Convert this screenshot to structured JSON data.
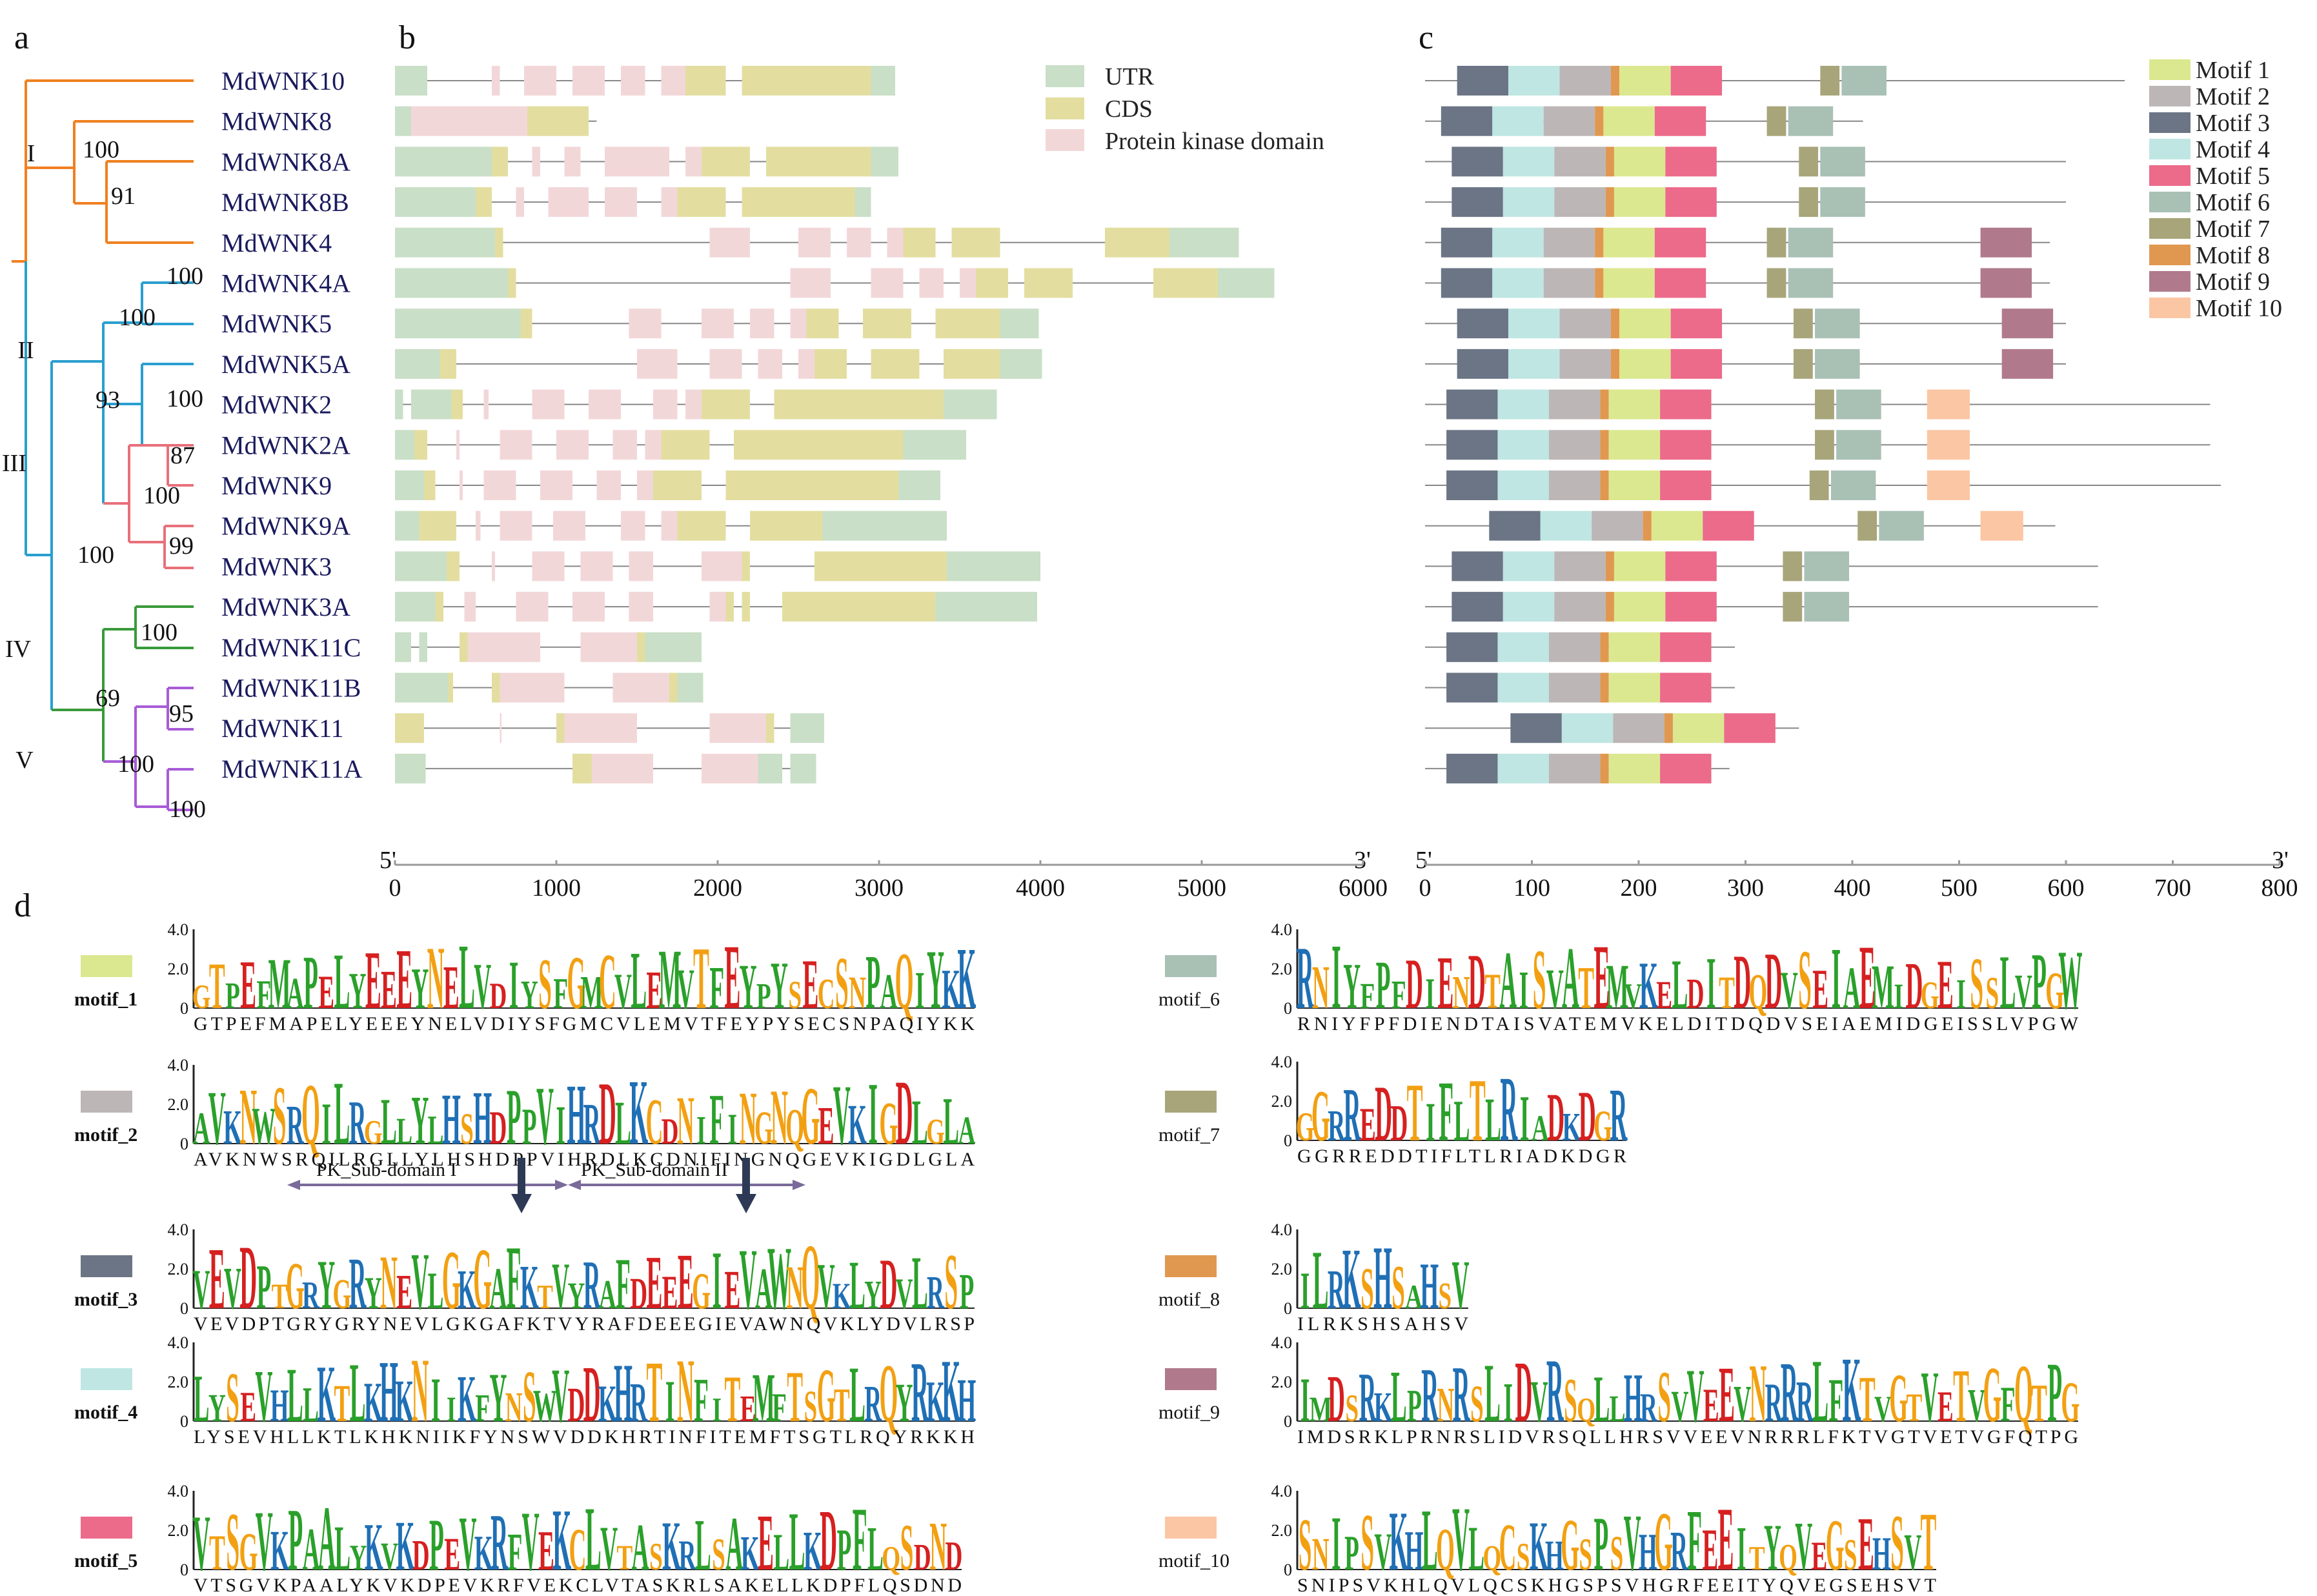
{
  "panels": {
    "a": "a",
    "b": "b",
    "c": "c",
    "d": "d"
  },
  "colors": {
    "utr": "#c9dfc7",
    "cds": "#e3dea0",
    "pk": "#f2d7d9",
    "line": "#888888",
    "groupI": "#f08020",
    "groupII": "#2a9fd0",
    "groupIII": "#e8707a",
    "groupIV": "#3a9a3a",
    "groupV": "#a85bd8",
    "logoA": "#2aa02a",
    "logoC": "#1f6fb5",
    "logoG": "#f2a012",
    "logoT": "#d62020"
  },
  "tree": {
    "groups": [
      "I",
      "II",
      "III",
      "IV",
      "V"
    ],
    "bootstrap": [
      "100",
      "91",
      "100",
      "100",
      "100",
      "93",
      "87",
      "100",
      "99",
      "100",
      "100",
      "69",
      "95",
      "100",
      "100"
    ]
  },
  "genes": [
    "MdWNK10",
    "MdWNK8",
    "MdWNK8A",
    "MdWNK8B",
    "MdWNK4",
    "MdWNK4A",
    "MdWNK5",
    "MdWNK5A",
    "MdWNK2",
    "MdWNK2A",
    "MdWNK9",
    "MdWNK9A",
    "MdWNK3",
    "MdWNK3A",
    "MdWNK11C",
    "MdWNK11B",
    "MdWNK11",
    "MdWNK11A"
  ],
  "gene_structure": {
    "legend": [
      "UTR",
      "CDS",
      "Protein kinase domain"
    ],
    "axis": {
      "start": "5'",
      "end": "3'",
      "ticks": [
        "0",
        "1000",
        "2000",
        "3000",
        "4000",
        "5000",
        "6000"
      ],
      "max": 6000
    },
    "lengths": [
      3100,
      1250,
      3120,
      2950,
      5230,
      5450,
      3990,
      4010,
      3730,
      3540,
      3380,
      3420,
      4000,
      3980,
      1900,
      1910,
      2660,
      2610
    ]
  },
  "motif_structure": {
    "axis": {
      "start": "5'",
      "end": "3'",
      "ticks": [
        "0",
        "100",
        "200",
        "300",
        "400",
        "500",
        "600",
        "700",
        "800"
      ],
      "max": 800
    },
    "protein_lengths": [
      655,
      410,
      600,
      600,
      585,
      585,
      600,
      600,
      735,
      735,
      745,
      590,
      630,
      630,
      290,
      290,
      350,
      285
    ],
    "legend": [
      "Motif 1",
      "Motif 2",
      "Motif 3",
      "Motif 4",
      "Motif 5",
      "Motif 6",
      "Motif 7",
      "Motif 8",
      "Motif 9",
      "Motif 10"
    ],
    "motif_colors": [
      "#dbe890",
      "#bdb6b6",
      "#6b7585",
      "#bfe6e2",
      "#ec6a8a",
      "#a9c0b5",
      "#a8a57a",
      "#e09850",
      "#b07a8c",
      "#fbc6a4"
    ]
  },
  "logos": {
    "ytick": [
      "4.0",
      "2.0",
      "0"
    ],
    "annotations": [
      "PK_Sub-domain I",
      "PK_Sub-domain II"
    ],
    "motifs": [
      {
        "name": "motif_1",
        "seq": "GTPEFMAPELYEEEYNELVDIYSFGMCVLEMVTFEYPYSECSNPAQIYKK"
      },
      {
        "name": "motif_2",
        "seq": "AVKNWSRQILRGLLYLHSHDPPVIHRDLKCDNIFINGNQGEVKIGDLGLA"
      },
      {
        "name": "motif_3",
        "seq": "VEVDPTGRYGRYNEVLGKGAFKTVYRAFDEEEGIEVAWNQVKLYDVLRSP"
      },
      {
        "name": "motif_4",
        "seq": "LYSEVHLLKTLKHKNIIKFYNSWVDDKHRTINFITEMFTSGTLRQYRKKH"
      },
      {
        "name": "motif_5",
        "seq": "VTSGVKPAALYKVKDPEVKRFVEKCLVTASKRLSAKELLKDPFLQSDND"
      },
      {
        "name": "motif_6",
        "seq": "RNIYFPFDIENDTAISVATEMVKELDITDQDVSEIAEMIDGEISSLVPGW"
      },
      {
        "name": "motif_7",
        "seq": "GGRREDDTIFLTLRIADKDGR"
      },
      {
        "name": "motif_8",
        "seq": "ILRKSHSAHSV"
      },
      {
        "name": "motif_9",
        "seq": "IMDSRKLPRNRSLIDVRSQLLHRSVVEEVNRRRLFKTVGTVETVGFQTPG"
      },
      {
        "name": "motif_10",
        "seq": "SNIPSVKHLQVLQCSKHGSPSVHGRFEEITYQVEGSEHSVT"
      }
    ]
  }
}
